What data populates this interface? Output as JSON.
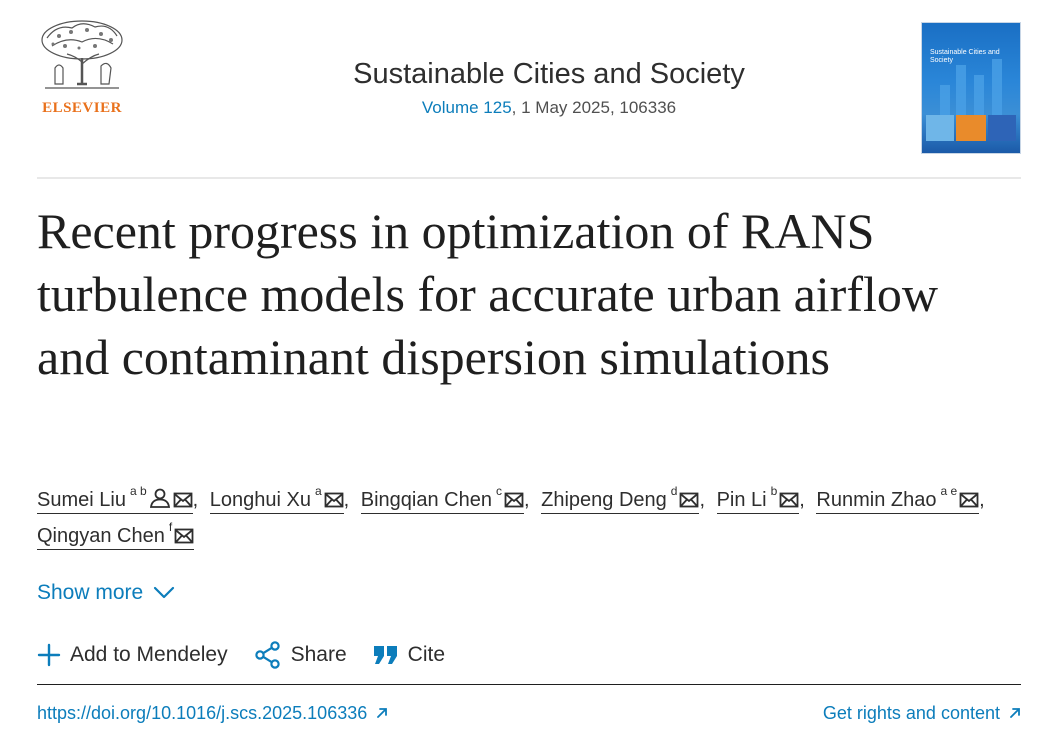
{
  "publisher": {
    "name": "ELSEVIER",
    "brand_color": "#e9711c"
  },
  "journal": {
    "title": "Sustainable Cities and Society",
    "volume_link": "Volume 125",
    "meta_rest": ", 1 May 2025, 106336",
    "cover_title": "Sustainable Cities and Society"
  },
  "article": {
    "title": "Recent progress in optimization of RANS turbulence models for accurate urban airflow and contaminant dispersion simulations",
    "authors": [
      {
        "name": "Sumei Liu",
        "affiliations": "a b",
        "icons": [
          "person-icon",
          "mail-icon"
        ]
      },
      {
        "name": "Longhui Xu",
        "affiliations": "a",
        "icons": [
          "mail-icon"
        ]
      },
      {
        "name": "Bingqian Chen",
        "affiliations": "c",
        "icons": [
          "mail-icon"
        ]
      },
      {
        "name": "Zhipeng Deng",
        "affiliations": "d",
        "icons": [
          "mail-icon"
        ]
      },
      {
        "name": "Pin Li",
        "affiliations": "b",
        "icons": [
          "mail-icon"
        ]
      },
      {
        "name": "Runmin Zhao",
        "affiliations": "a e",
        "icons": [
          "mail-icon"
        ]
      },
      {
        "name": "Qingyan Chen",
        "affiliations": "f",
        "icons": [
          "mail-icon"
        ]
      }
    ],
    "author_separator": ","
  },
  "show_more": {
    "label": "Show more",
    "icon": "chevron-down-icon"
  },
  "actions": {
    "add_mendeley": {
      "label": "Add to Mendeley",
      "icon": "plus-icon"
    },
    "share": {
      "label": "Share",
      "icon": "share-icon"
    },
    "cite": {
      "label": "Cite",
      "icon": "quote-icon"
    }
  },
  "links": {
    "doi": "https://doi.org/10.1016/j.scs.2025.106336",
    "rights": "Get rights and content",
    "external_icon": "external-link-icon"
  },
  "colors": {
    "link": "#0c7dbb",
    "text": "#1f1f1f",
    "accent": "#e9711c"
  }
}
